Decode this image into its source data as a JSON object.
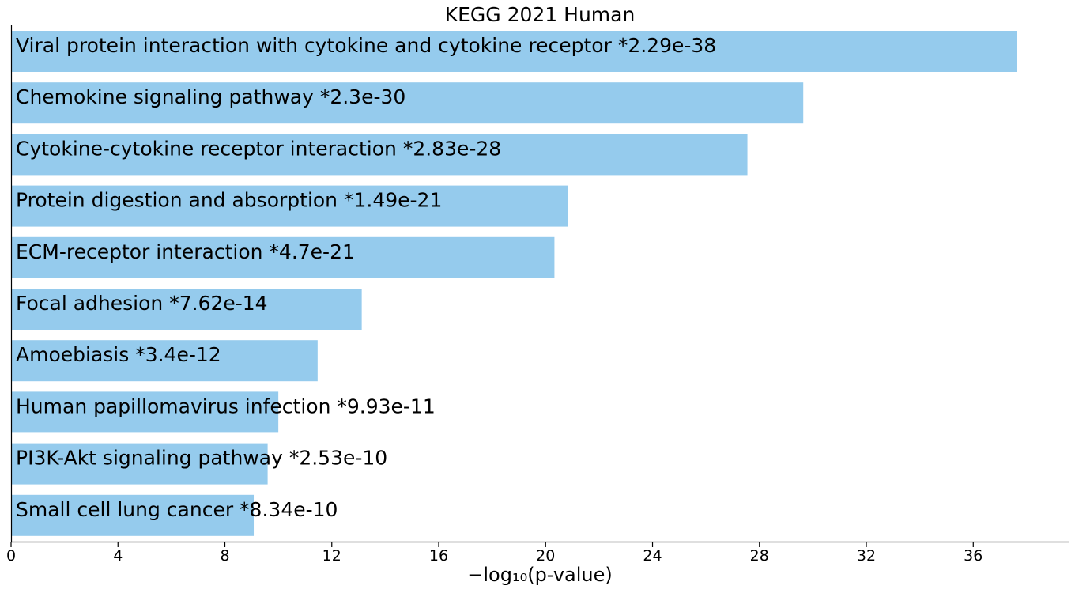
{
  "chart_data": {
    "type": "bar",
    "orientation": "horizontal",
    "title": "KEGG 2021 Human",
    "xlabel": "−log₁₀(p-value)",
    "ylabel": "",
    "xlim": [
      0,
      39.6
    ],
    "xticks": [
      0,
      4,
      8,
      12,
      16,
      20,
      24,
      28,
      32,
      36
    ],
    "grid": false,
    "bar_color": "#95cbed",
    "categories": [
      "Viral protein interaction with cytokine and cytokine receptor",
      "Chemokine signaling pathway",
      "Cytokine-cytokine receptor interaction",
      "Protein digestion and absorption",
      "ECM-receptor interaction",
      "Focal adhesion",
      "Amoebiasis",
      "Human papillomavirus infection",
      "PI3K-Akt signaling pathway",
      "Small cell lung cancer"
    ],
    "pvalue_labels": [
      "*2.29e-38",
      "*2.3e-30",
      "*2.83e-28",
      "*1.49e-21",
      "*4.7e-21",
      "*7.62e-14",
      "*3.4e-12",
      "*9.93e-11",
      "*2.53e-10",
      "*8.34e-10"
    ],
    "values": [
      37.64,
      29.64,
      27.55,
      20.83,
      20.33,
      13.12,
      11.47,
      10.0,
      9.6,
      9.08
    ]
  }
}
